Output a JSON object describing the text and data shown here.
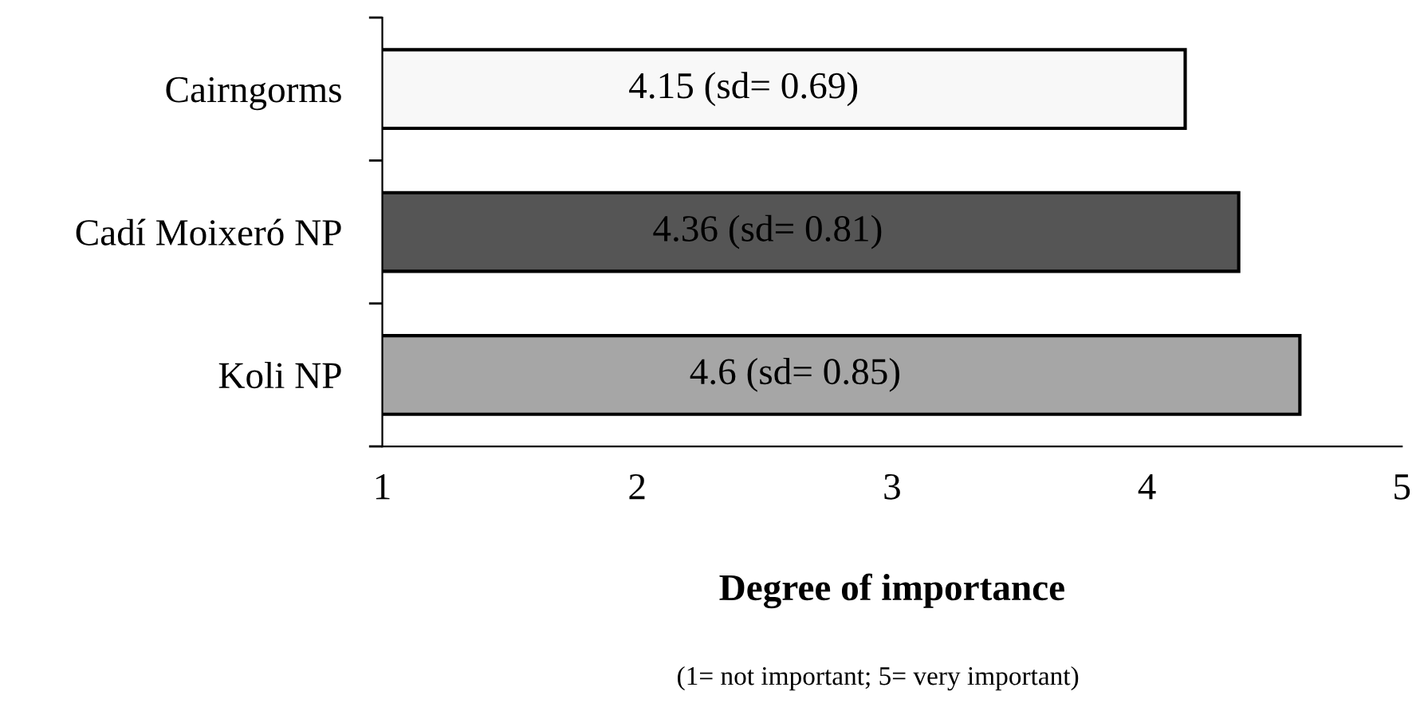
{
  "chart_data": {
    "type": "bar",
    "orientation": "horizontal",
    "categories": [
      "Cairngorms",
      "Cadí Moixeró NP",
      "Koli NP"
    ],
    "values": [
      4.15,
      4.36,
      4.6
    ],
    "colors": [
      "#f8f8f8",
      "#555555",
      "#a6a6a6"
    ],
    "value_labels": [
      "4.15 (sd= 0.69)",
      "4.36 (sd= 0.81)",
      "4.6 (sd= 0.85)"
    ],
    "xlim": [
      1,
      5
    ],
    "xticks": [
      1,
      2,
      3,
      4,
      5
    ],
    "xlabel": "Degree of importance",
    "annotations": [
      "(1= not important; 5= very important)"
    ],
    "grid": false,
    "legend": false
  }
}
